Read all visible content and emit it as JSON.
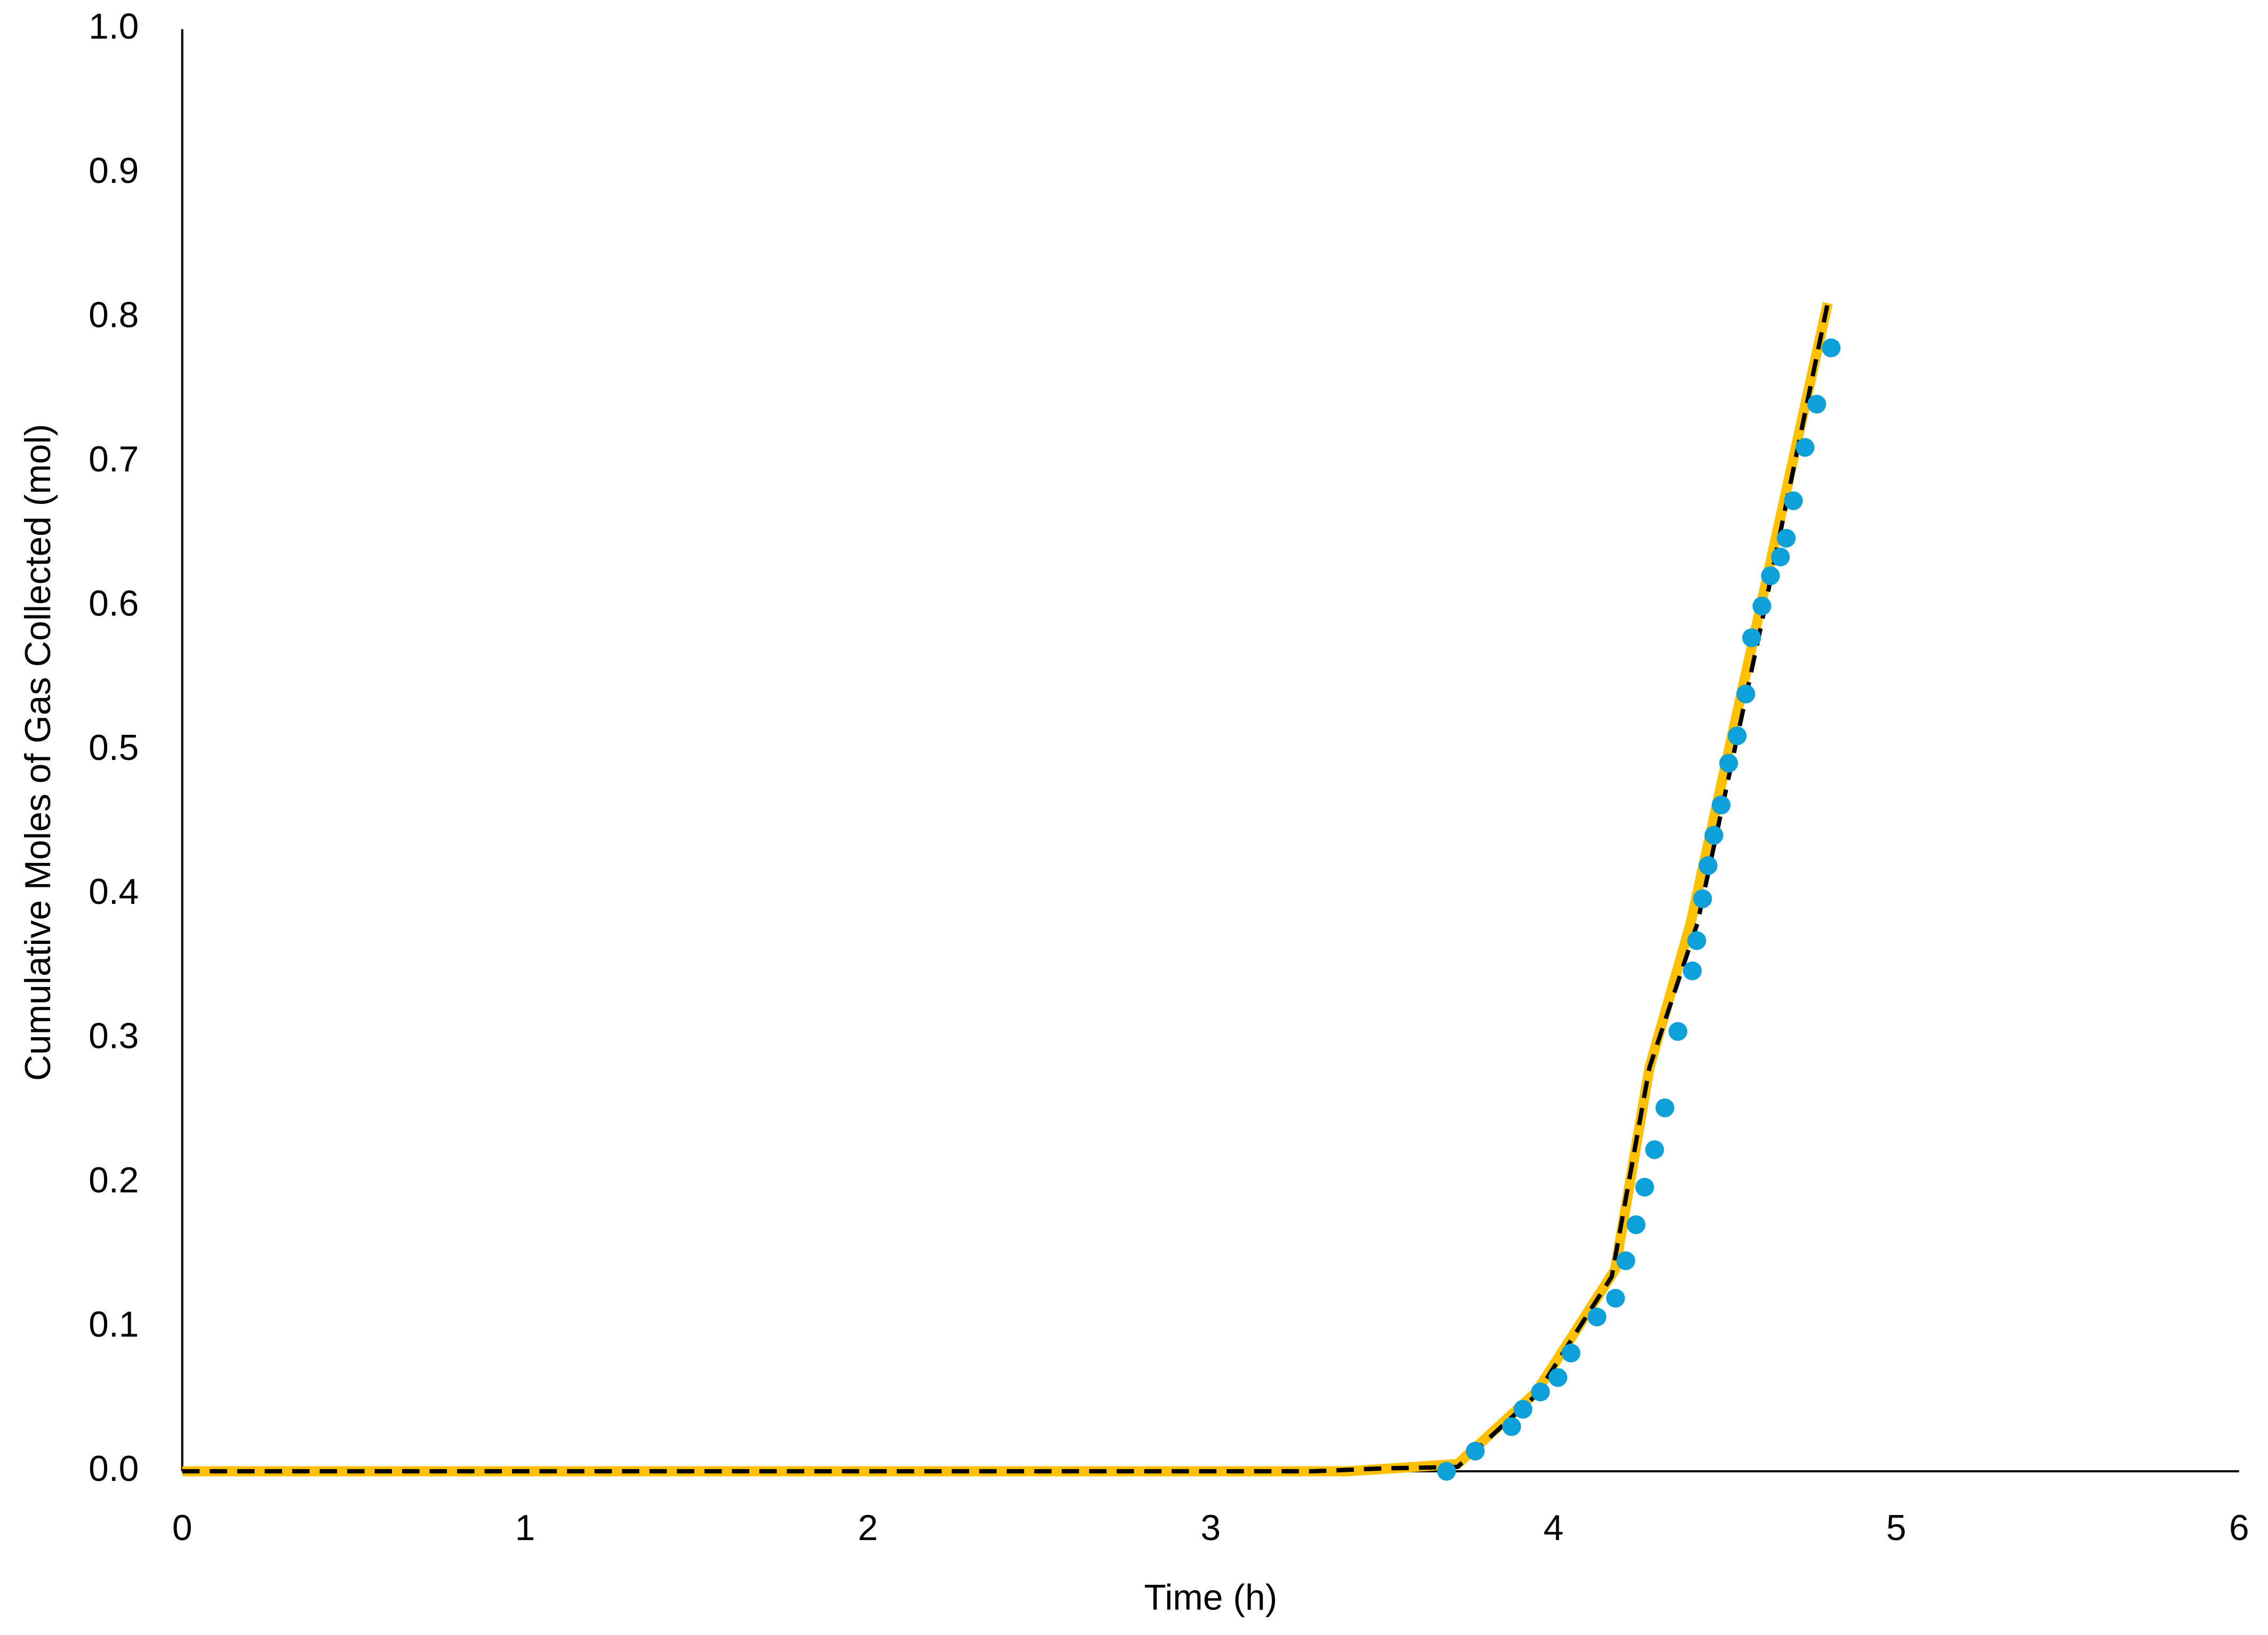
{
  "chart_data": {
    "type": "scatter",
    "x_label": "Time (h)",
    "y_label": "Cumulative Moles of Gas Collected (mol)",
    "xlim": [
      0,
      6
    ],
    "ylim": [
      0,
      1
    ],
    "xticks": [
      0,
      1,
      2,
      3,
      4,
      5,
      6
    ],
    "yticks": [
      {
        "value": 0,
        "label": "0.0"
      },
      0.1,
      0.2,
      0.3,
      0.4,
      0.5,
      0.6,
      0.7,
      0.8,
      0.9,
      {
        "value": 1,
        "label": "1.0"
      }
    ],
    "grid": false,
    "series": [
      {
        "mode": "line",
        "color": "#ffc000",
        "x": [
          0,
          3.4,
          3.72,
          3.95,
          4.18,
          4.28,
          4.4,
          4.8
        ],
        "values": [
          0,
          0,
          0.005,
          0.055,
          0.14,
          0.28,
          0.38,
          0.81
        ]
      },
      {
        "mode": "dashed",
        "color": "#000000",
        "x": [
          0,
          3.3,
          3.5,
          3.72,
          3.95,
          4.17,
          4.28,
          4.42,
          4.6,
          4.8
        ],
        "values": [
          0,
          0,
          0.002,
          0.003,
          0.053,
          0.135,
          0.28,
          0.38,
          0.58,
          0.81
        ]
      },
      {
        "mode": "markers",
        "color": "#0ea0d8",
        "x": [
          3.688,
          3.772,
          3.878,
          3.911,
          3.962,
          4.013,
          4.051,
          4.127,
          4.181,
          4.211,
          4.241,
          4.266,
          4.295,
          4.325,
          4.363,
          4.405,
          4.418,
          4.435,
          4.451,
          4.468,
          4.489,
          4.511,
          4.536,
          4.561,
          4.578,
          4.608,
          4.633,
          4.662,
          4.679,
          4.7,
          4.734,
          4.768,
          4.81
        ],
        "values": [
          0,
          0.014,
          0.031,
          0.043,
          0.055,
          0.065,
          0.082,
          0.107,
          0.12,
          0.146,
          0.171,
          0.197,
          0.223,
          0.252,
          0.305,
          0.347,
          0.368,
          0.397,
          0.42,
          0.441,
          0.462,
          0.491,
          0.51,
          0.539,
          0.578,
          0.6,
          0.621,
          0.634,
          0.647,
          0.673,
          0.71,
          0.74,
          0.779
        ]
      }
    ]
  }
}
